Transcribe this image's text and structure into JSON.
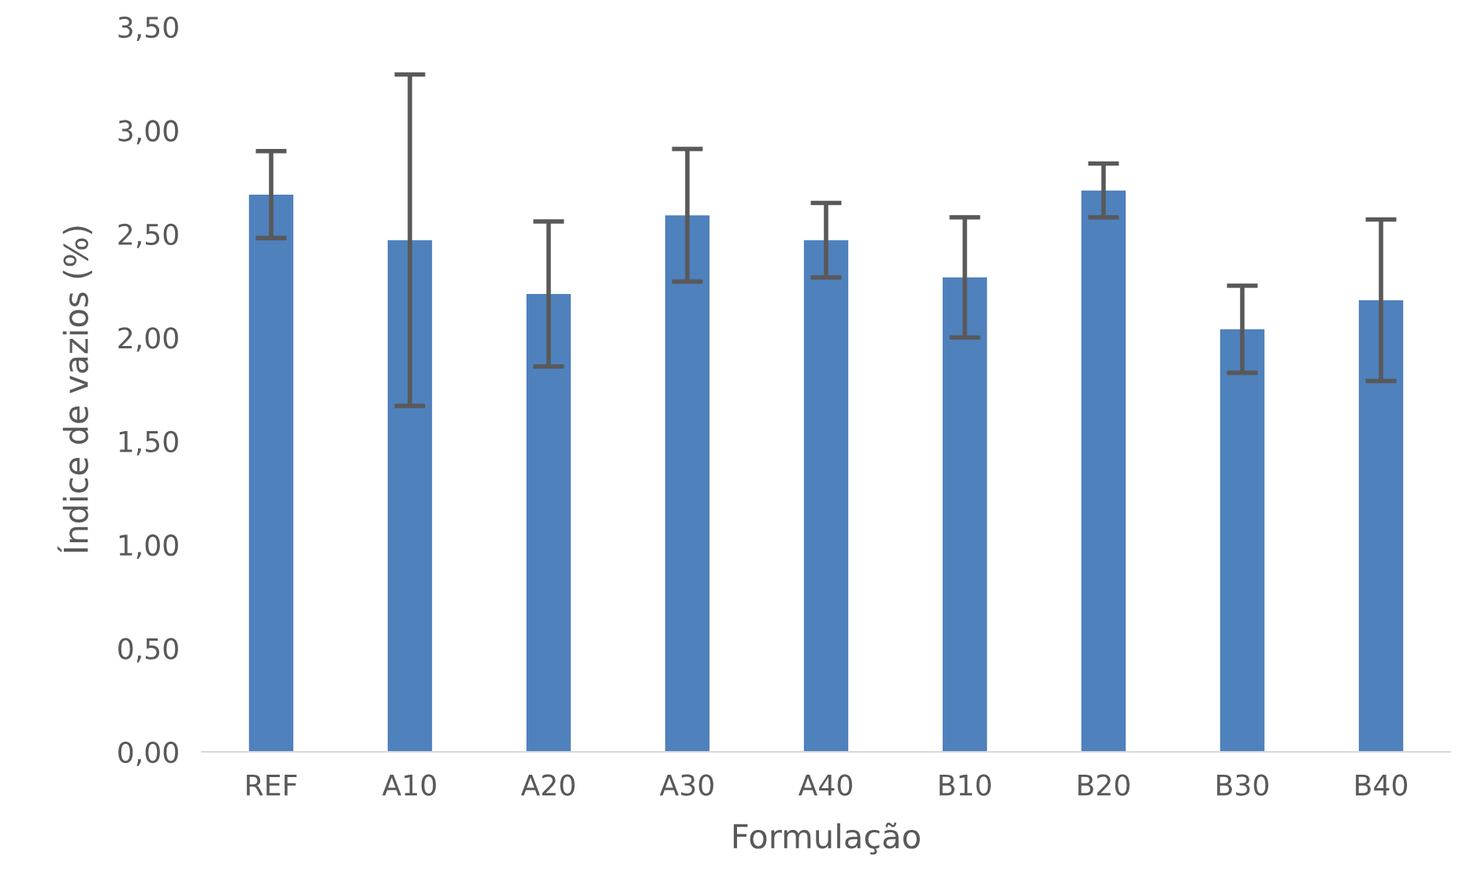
{
  "chart_data": {
    "type": "bar",
    "xlabel": "Formulação",
    "ylabel": "Índice de vazios (%)",
    "categories": [
      "REF",
      "A10",
      "A20",
      "A30",
      "A40",
      "B10",
      "B20",
      "B30",
      "B40"
    ],
    "values": [
      2.69,
      2.47,
      2.21,
      2.59,
      2.47,
      2.29,
      2.71,
      2.04,
      2.18
    ],
    "errors": [
      0.21,
      0.8,
      0.35,
      0.32,
      0.18,
      0.29,
      0.13,
      0.21,
      0.39
    ],
    "color": "#4f81bd",
    "ylim": [
      0,
      3.5
    ],
    "yticks": [
      {
        "value": 0,
        "label": "0,00"
      },
      {
        "value": 0.5,
        "label": "0,50"
      },
      {
        "value": 1,
        "label": "1,00"
      },
      {
        "value": 1.5,
        "label": "1,50"
      },
      {
        "value": 2,
        "label": "2,00"
      },
      {
        "value": 2.5,
        "label": "2,50"
      },
      {
        "value": 3,
        "label": "3,00"
      },
      {
        "value": 3.5,
        "label": "3,50"
      }
    ],
    "grid": false,
    "legend": false
  }
}
